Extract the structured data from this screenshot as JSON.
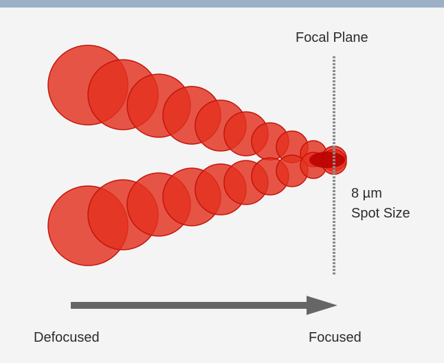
{
  "labels": {
    "focal_plane": "Focal Plane",
    "spot_size_line1": "8 µm",
    "spot_size_line2": "Spot Size",
    "defocused": "Defocused",
    "focused": "Focused"
  },
  "colors": {
    "background": "#f4f4f4",
    "top_band": "#9bb0c6",
    "beam_spot_fill": "#e3311f",
    "beam_spot_stroke": "#c4140c",
    "overlap": "#b90000",
    "focal_plane_line": "#8c8c8c",
    "arrow": "#666666"
  },
  "icons": {
    "arrow": "right-arrow"
  }
}
